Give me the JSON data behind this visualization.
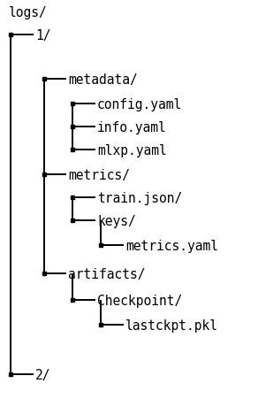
{
  "background_color": "#ffffff",
  "font_family": "DejaVu Sans Mono",
  "font_size": 10.5,
  "text_color": "#000000",
  "line_color": "#000000",
  "line_width": 1.4,
  "dot_size": 4.5,
  "rows": [
    {
      "text": "logs/",
      "indent": 0
    },
    {
      "text": "1/",
      "indent": 1
    },
    {
      "text": "",
      "indent": 0
    },
    {
      "text": "metadata/",
      "indent": 2
    },
    {
      "text": "config.yaml",
      "indent": 3
    },
    {
      "text": "info.yaml",
      "indent": 3
    },
    {
      "text": "mlxp.yaml",
      "indent": 3
    },
    {
      "text": "metrics/",
      "indent": 2
    },
    {
      "text": "train.json/",
      "indent": 3
    },
    {
      "text": "keys/",
      "indent": 3
    },
    {
      "text": "metrics.yaml",
      "indent": 4
    },
    {
      "text": "artifacts/",
      "indent": 2
    },
    {
      "text": "Checkpoint/",
      "indent": 3
    },
    {
      "text": "lastckpt.pkl",
      "indent": 4
    },
    {
      "text": "",
      "indent": 0
    },
    {
      "text": "2/",
      "indent": 1
    }
  ],
  "figsize": [
    2.92,
    4.52
  ],
  "dpi": 100
}
